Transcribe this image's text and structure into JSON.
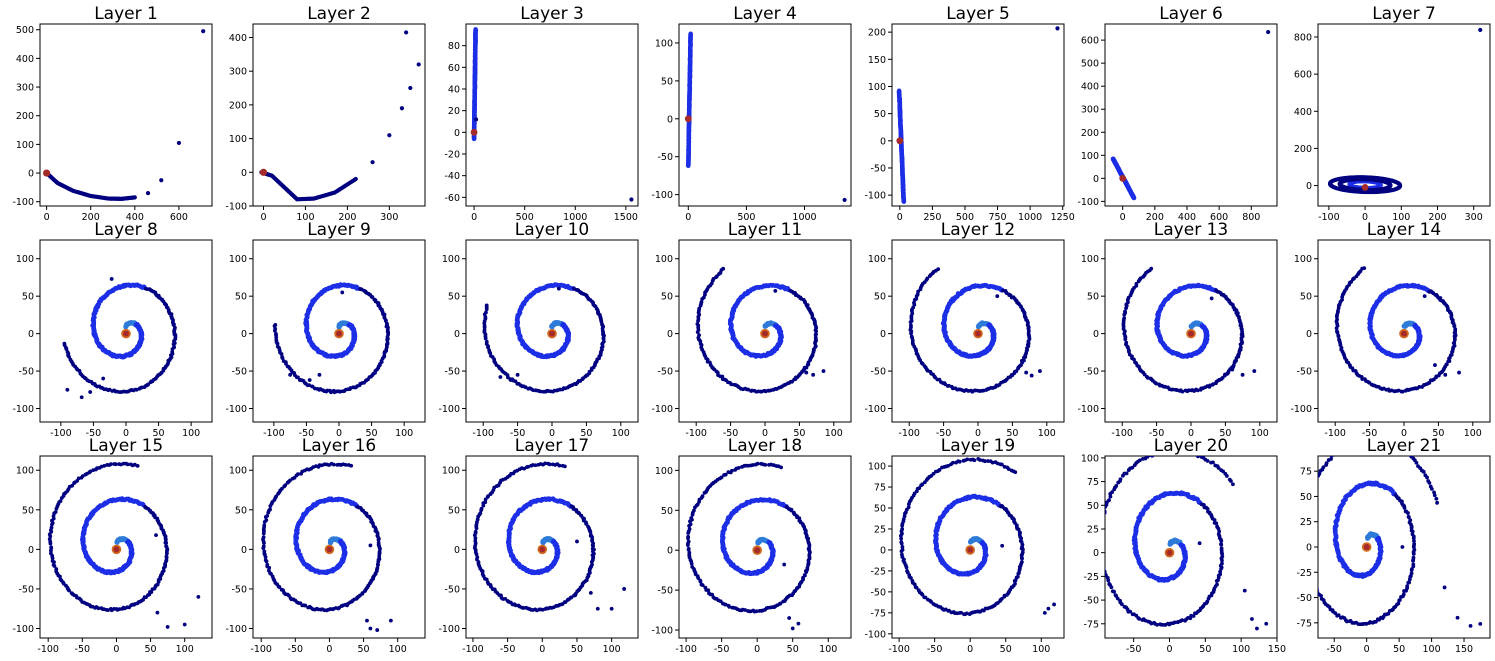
{
  "colors": {
    "point_dark": "#000080",
    "point_blue": "#1c2ee6",
    "point_light": "#2f7bd9",
    "center_red": "#a52a2a",
    "center_orange": "#d2691e"
  },
  "chart_data": [
    {
      "type": "scatter",
      "title": "Layer 1",
      "kind": "arc",
      "xlim": [
        -30,
        750
      ],
      "ylim": [
        -115,
        520
      ],
      "xticks": [
        0,
        200,
        400,
        600
      ],
      "yticks": [
        -100,
        0,
        100,
        200,
        300,
        400,
        500
      ],
      "params": {
        "points": [
          [
            0,
            0
          ],
          [
            50,
            -35
          ],
          [
            120,
            -62
          ],
          [
            200,
            -80
          ],
          [
            280,
            -89
          ],
          [
            340,
            -90
          ],
          [
            400,
            -85
          ],
          [
            460,
            -70
          ],
          [
            520,
            -25
          ],
          [
            600,
            105
          ],
          [
            710,
            495
          ]
        ]
      }
    },
    {
      "type": "scatter",
      "title": "Layer 2",
      "kind": "arc",
      "xlim": [
        -25,
        385
      ],
      "ylim": [
        -100,
        440
      ],
      "xticks": [
        0,
        100,
        200,
        300
      ],
      "yticks": [
        -100,
        0,
        100,
        200,
        300,
        400
      ],
      "params": {
        "points": [
          [
            -5,
            0
          ],
          [
            20,
            -10
          ],
          [
            50,
            -45
          ],
          [
            80,
            -80
          ],
          [
            120,
            -78
          ],
          [
            170,
            -60
          ],
          [
            220,
            -20
          ],
          [
            260,
            30
          ],
          [
            300,
            110
          ],
          [
            330,
            190
          ],
          [
            350,
            250
          ],
          [
            370,
            320
          ],
          [
            340,
            415
          ]
        ]
      }
    },
    {
      "type": "scatter",
      "title": "Layer 3",
      "kind": "line",
      "xlim": [
        -80,
        1620
      ],
      "ylim": [
        -68,
        100
      ],
      "xticks": [
        0,
        500,
        1000,
        1500
      ],
      "yticks": [
        -60,
        -40,
        -20,
        0,
        20,
        40,
        60,
        80
      ],
      "params": {
        "from": [
          0,
          -6
        ],
        "to": [
          15,
          95
        ],
        "n": 160,
        "outlier": [
          1555,
          -62
        ],
        "extra": [
          [
            20,
            12
          ]
        ]
      }
    },
    {
      "type": "scatter",
      "title": "Layer 4",
      "kind": "line",
      "xlim": [
        -80,
        1400
      ],
      "ylim": [
        -115,
        125
      ],
      "xticks": [
        0,
        500,
        1000
      ],
      "yticks": [
        -100,
        -50,
        0,
        50,
        100
      ],
      "params": {
        "from": [
          0,
          -62
        ],
        "to": [
          20,
          112
        ],
        "n": 160,
        "outlier": [
          1345,
          -107
        ],
        "extra": []
      }
    },
    {
      "type": "scatter",
      "title": "Layer 5",
      "kind": "line",
      "xlim": [
        -60,
        1260
      ],
      "ylim": [
        -120,
        215
      ],
      "xticks": [
        0,
        250,
        500,
        750,
        1000,
        1250
      ],
      "yticks": [
        -100,
        -50,
        0,
        50,
        100,
        150,
        200
      ],
      "params": {
        "from": [
          -5,
          92
        ],
        "to": [
          30,
          -112
        ],
        "n": 160,
        "outlier": [
          1210,
          207
        ],
        "extra": []
      }
    },
    {
      "type": "scatter",
      "title": "Layer 6",
      "kind": "line",
      "xlim": [
        -110,
        960
      ],
      "ylim": [
        -120,
        670
      ],
      "xticks": [
        0,
        200,
        400,
        600,
        800
      ],
      "yticks": [
        -100,
        0,
        100,
        200,
        300,
        400,
        500,
        600
      ],
      "params": {
        "from": [
          -60,
          85
        ],
        "to": [
          70,
          -85
        ],
        "n": 160,
        "outlier": [
          905,
          635
        ],
        "extra": []
      }
    },
    {
      "type": "scatter",
      "title": "Layer 7",
      "kind": "ellipse",
      "xlim": [
        -130,
        345
      ],
      "ylim": [
        -110,
        870
      ],
      "xticks": [
        -100,
        0,
        100,
        200,
        300
      ],
      "yticks": [
        0,
        200,
        400,
        600,
        800
      ],
      "params": {
        "cx": 0,
        "cy": 5,
        "rx": 95,
        "ry": 50,
        "outlier": [
          318,
          838
        ]
      }
    },
    {
      "type": "scatter",
      "title": "Layer 8",
      "kind": "spiral",
      "xlim": [
        -132,
        132
      ],
      "ylim": [
        -118,
        125
      ],
      "xticks": [
        -100,
        -50,
        0,
        50,
        100
      ],
      "yticks": [
        -100,
        -50,
        0,
        50,
        100
      ],
      "params": {
        "tcut": 0.72,
        "dot": [
          -22,
          73
        ],
        "tail": [
          [
            -35,
            -60
          ],
          [
            -55,
            -78
          ],
          [
            -68,
            -85
          ],
          [
            -90,
            -75
          ]
        ],
        "rot": 0
      }
    },
    {
      "type": "scatter",
      "title": "Layer 9",
      "kind": "spiral",
      "xlim": [
        -132,
        132
      ],
      "ylim": [
        -118,
        125
      ],
      "xticks": [
        -100,
        -50,
        0,
        50,
        100
      ],
      "yticks": [
        -100,
        -50,
        0,
        50,
        100
      ],
      "params": {
        "tcut": 0.74,
        "dot": [
          5,
          55
        ],
        "tail": [
          [
            -30,
            -55
          ],
          [
            -45,
            -62
          ],
          [
            -60,
            -62
          ],
          [
            -75,
            -55
          ]
        ],
        "rot": 0.1
      }
    },
    {
      "type": "scatter",
      "title": "Layer 10",
      "kind": "spiral",
      "xlim": [
        -125,
        125
      ],
      "ylim": [
        -118,
        125
      ],
      "xticks": [
        -100,
        -50,
        0,
        50,
        100
      ],
      "yticks": [
        -100,
        -50,
        0,
        50,
        100
      ],
      "params": {
        "tcut": 0.76,
        "dot": [
          10,
          60
        ],
        "tail": [
          [
            -50,
            -55
          ],
          [
            -60,
            -62
          ],
          [
            -75,
            -58
          ]
        ],
        "rot": 0.2
      }
    },
    {
      "type": "scatter",
      "title": "Layer 11",
      "kind": "spiral",
      "xlim": [
        -125,
        125
      ],
      "ylim": [
        -118,
        125
      ],
      "xticks": [
        -100,
        -50,
        0,
        50,
        100
      ],
      "yticks": [
        -100,
        -50,
        0,
        50,
        100
      ],
      "params": {
        "tcut": 0.8,
        "dot": [
          15,
          57
        ],
        "tail": [
          [
            60,
            -52
          ],
          [
            70,
            -55
          ],
          [
            85,
            -50
          ]
        ],
        "rot": 0.6
      }
    },
    {
      "type": "scatter",
      "title": "Layer 12",
      "kind": "spiral",
      "xlim": [
        -125,
        125
      ],
      "ylim": [
        -118,
        125
      ],
      "xticks": [
        -100,
        -50,
        0,
        50,
        100
      ],
      "yticks": [
        -100,
        -50,
        0,
        50,
        100
      ],
      "params": {
        "tcut": 0.8,
        "dot": [
          28,
          50
        ],
        "tail": [
          [
            70,
            -52
          ],
          [
            78,
            -56
          ],
          [
            90,
            -50
          ]
        ],
        "rot": 0.7
      }
    },
    {
      "type": "scatter",
      "title": "Layer 13",
      "kind": "spiral",
      "xlim": [
        -125,
        125
      ],
      "ylim": [
        -118,
        125
      ],
      "xticks": [
        -100,
        -50,
        0,
        50,
        100
      ],
      "yticks": [
        -100,
        -50,
        0,
        50,
        100
      ],
      "params": {
        "tcut": 0.8,
        "dot": [
          30,
          47
        ],
        "tail": [
          [
            60,
            -48
          ],
          [
            75,
            -55
          ],
          [
            92,
            -50
          ]
        ],
        "rot": 0.75
      }
    },
    {
      "type": "scatter",
      "title": "Layer 14",
      "kind": "spiral",
      "xlim": [
        -125,
        125
      ],
      "ylim": [
        -118,
        125
      ],
      "xticks": [
        -100,
        -50,
        0,
        50,
        100
      ],
      "yticks": [
        -100,
        -50,
        0,
        50,
        100
      ],
      "params": {
        "tcut": 0.8,
        "dot": [
          30,
          50
        ],
        "tail": [
          [
            45,
            -42
          ],
          [
            60,
            -55
          ],
          [
            80,
            -52
          ]
        ],
        "rot": 0.8
      }
    },
    {
      "type": "scatter",
      "title": "Layer 15",
      "kind": "spiral",
      "xlim": [
        -112,
        140
      ],
      "ylim": [
        -112,
        118
      ],
      "xticks": [
        -100,
        -50,
        0,
        50,
        100
      ],
      "yticks": [
        -100,
        -50,
        0,
        50,
        100
      ],
      "params": {
        "tcut": 0.86,
        "dot": [
          58,
          18
        ],
        "tail": [
          [
            60,
            -80
          ],
          [
            75,
            -98
          ],
          [
            100,
            -95
          ],
          [
            120,
            -60
          ]
        ],
        "rot": 1.2
      }
    },
    {
      "type": "scatter",
      "title": "Layer 16",
      "kind": "spiral",
      "xlim": [
        -112,
        140
      ],
      "ylim": [
        -112,
        118
      ],
      "xticks": [
        -100,
        -50,
        0,
        50,
        100
      ],
      "yticks": [
        -100,
        -50,
        0,
        50,
        100
      ],
      "params": {
        "tcut": 0.86,
        "dot": [
          60,
          5
        ],
        "tail": [
          [
            55,
            -90
          ],
          [
            60,
            -100
          ],
          [
            70,
            -102
          ],
          [
            90,
            -90
          ]
        ],
        "rot": 1.25
      }
    },
    {
      "type": "scatter",
      "title": "Layer 17",
      "kind": "spiral",
      "xlim": [
        -110,
        138
      ],
      "ylim": [
        -112,
        118
      ],
      "xticks": [
        -100,
        -50,
        0,
        50,
        100
      ],
      "yticks": [
        -100,
        -50,
        0,
        50,
        100
      ],
      "params": {
        "tcut": 0.86,
        "dot": [
          50,
          10
        ],
        "tail": [
          [
            70,
            -55
          ],
          [
            80,
            -75
          ],
          [
            100,
            -75
          ],
          [
            118,
            -50
          ]
        ],
        "rot": 1.3
      }
    },
    {
      "type": "scatter",
      "title": "Layer 18",
      "kind": "spiral",
      "xlim": [
        -110,
        132
      ],
      "ylim": [
        -110,
        118
      ],
      "xticks": [
        -100,
        -50,
        0,
        50,
        100
      ],
      "yticks": [
        -100,
        -50,
        0,
        50,
        100
      ],
      "params": {
        "tcut": 0.86,
        "dot": [
          38,
          -18
        ],
        "tail": [
          [
            45,
            -85
          ],
          [
            50,
            -98
          ],
          [
            58,
            -92
          ]
        ],
        "rot": 1.35
      }
    },
    {
      "type": "scatter",
      "title": "Layer 19",
      "kind": "spiral",
      "xlim": [
        -110,
        132
      ],
      "ylim": [
        -105,
        112
      ],
      "xticks": [
        -100,
        -50,
        0,
        50,
        100
      ],
      "yticks": [
        -100,
        -75,
        -50,
        -25,
        0,
        25,
        50,
        75,
        100
      ],
      "params": {
        "tcut": 0.88,
        "dot": [
          45,
          5
        ],
        "tail": [
          [
            105,
            -75
          ],
          [
            110,
            -70
          ],
          [
            118,
            -65
          ]
        ],
        "rot": 1.45
      }
    },
    {
      "type": "scatter",
      "title": "Layer 20",
      "kind": "spiral",
      "xlim": [
        -90,
        150
      ],
      "ylim": [
        -90,
        102
      ],
      "xticks": [
        -50,
        0,
        50,
        100,
        150
      ],
      "yticks": [
        -75,
        -50,
        -25,
        0,
        25,
        50,
        75,
        100
      ],
      "params": {
        "tcut": 0.9,
        "dot": [
          42,
          10
        ],
        "tail": [
          [
            105,
            -40
          ],
          [
            115,
            -70
          ],
          [
            122,
            -80
          ],
          [
            135,
            -75
          ]
        ],
        "rot": 1.6
      }
    },
    {
      "type": "scatter",
      "title": "Layer 21",
      "kind": "spiral",
      "xlim": [
        -75,
        190
      ],
      "ylim": [
        -90,
        90
      ],
      "xticks": [
        -50,
        0,
        50,
        100,
        150
      ],
      "yticks": [
        -75,
        -50,
        -25,
        0,
        25,
        50,
        75
      ],
      "params": {
        "tcut": 0.92,
        "dot": [
          55,
          0
        ],
        "tail": [
          [
            120,
            -40
          ],
          [
            140,
            -70
          ],
          [
            160,
            -78
          ],
          [
            175,
            -76
          ]
        ],
        "rot": 1.75
      }
    }
  ]
}
